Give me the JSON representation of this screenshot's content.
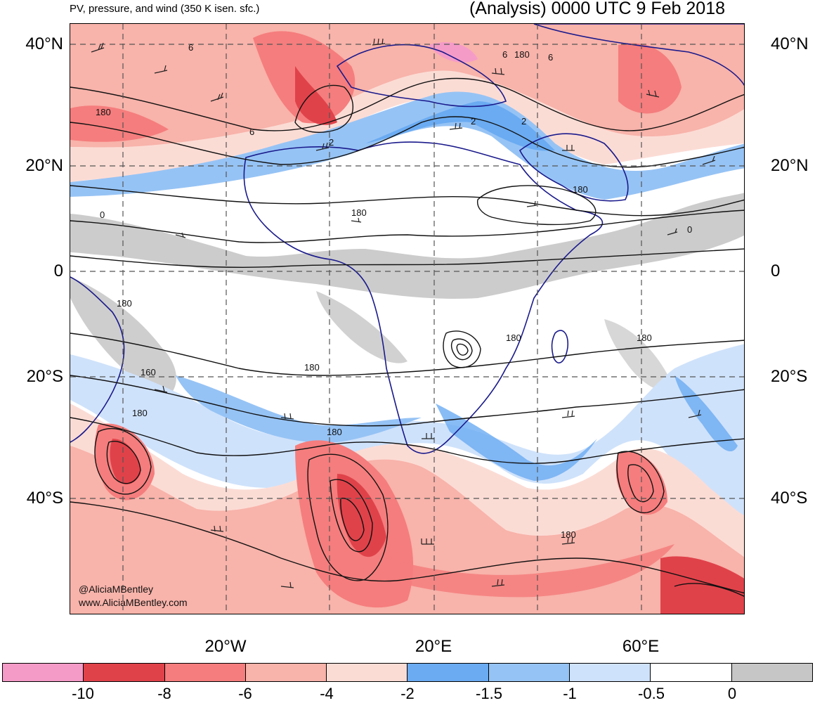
{
  "header": {
    "left_title": "PV, pressure, and wind (350 K isen. sfc.)",
    "right_title": "(Analysis) 0000 UTC 9 Feb 2018"
  },
  "map": {
    "lat_labels": [
      "40°N",
      "20°N",
      "0",
      "20°S",
      "40°S"
    ],
    "lon_labels": [
      "20°W",
      "20°E",
      "60°E"
    ],
    "contour_labels": [
      "6",
      "180",
      "6",
      "2",
      "6",
      "180",
      "6",
      "2",
      "2",
      "180",
      "180",
      "0",
      "180",
      "180",
      "160",
      "180",
      "180",
      "180",
      "180",
      "180",
      "0"
    ],
    "credit_lines": [
      "@AliciaMBentley",
      "www.AliciaMBentley.com"
    ],
    "colors": {
      "land_border": "#1a1a8c",
      "grid": "#555555"
    }
  },
  "colorbar": {
    "colors": [
      "#f59bc8",
      "#e0424a",
      "#f57d7d",
      "#f8b3aa",
      "#fbdcd5",
      "#6aabf2",
      "#96c3f5",
      "#cfe2fb",
      "#ffffff",
      "#c6c6c6"
    ],
    "labels": [
      "-10",
      "-8",
      "-6",
      "-4",
      "-2",
      "-1.5",
      "-1",
      "-0.5",
      "0"
    ]
  }
}
